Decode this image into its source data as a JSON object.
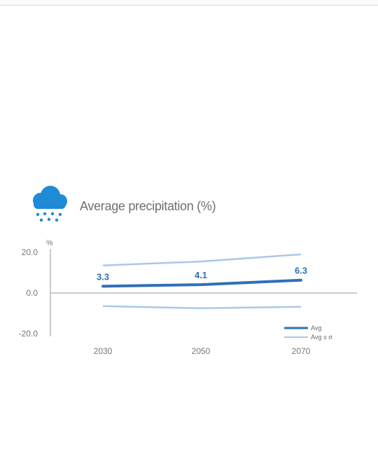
{
  "chart_data": {
    "type": "line",
    "title": "Average precipitation (%)",
    "ylabel": "%",
    "xlabel": "",
    "categories": [
      "2030",
      "2050",
      "2070"
    ],
    "x": [
      2030,
      2050,
      2070
    ],
    "yticks": [
      "20.0",
      "0.0",
      "-20.0"
    ],
    "ylim": [
      -20,
      20
    ],
    "grid": false,
    "legend_position": "bottom-right",
    "series": [
      {
        "name": "Avg",
        "values": [
          3.3,
          4.1,
          6.3
        ],
        "labels": [
          "3.3",
          "4.1",
          "6.3"
        ],
        "color": "#2f6fb6"
      },
      {
        "name": "Avg ± σ",
        "values": [
          13.5,
          15.5,
          19.0
        ],
        "color": "#a9c8ea"
      },
      {
        "name": "",
        "values": [
          -6.5,
          -7.5,
          -6.8
        ],
        "color": "#a9c8ea"
      }
    ]
  },
  "icon": "rain-cloud-icon",
  "colors": {
    "accent": "#2f6fb6",
    "band": "#a9c8ea",
    "axis": "#999999",
    "text": "#6f6f6f"
  }
}
